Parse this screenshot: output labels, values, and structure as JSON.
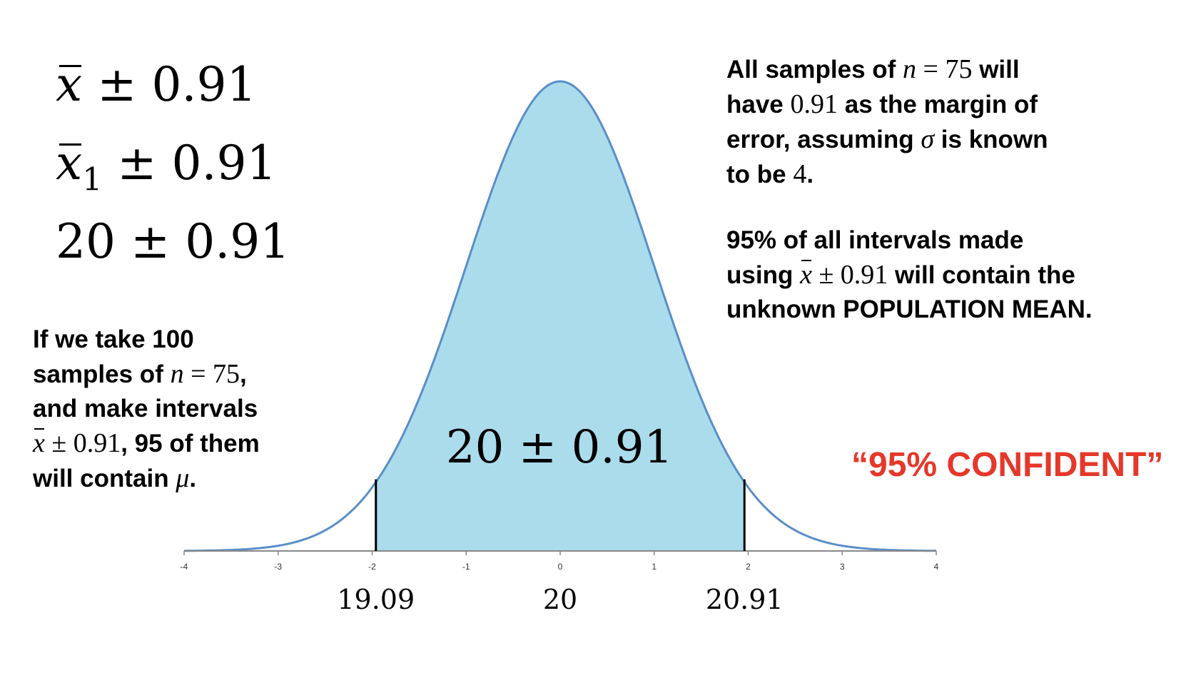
{
  "formulas": {
    "f1": {
      "var": "x",
      "sub": "",
      "rest": " ± 0.91"
    },
    "f2": {
      "var": "x",
      "sub": "1",
      "rest": " ± 0.91"
    },
    "f3": {
      "text": "20 ± 0.91"
    }
  },
  "left_paragraph": {
    "l1": "If we take 100",
    "l2a": "samples of ",
    "l2n": "n",
    "l2b": " = 75",
    "l2c": ",",
    "l3": "and make intervals",
    "l4x": "x",
    "l4m": " ± 0.91",
    "l4b": ", 95 of them",
    "l5a": "will contain ",
    "l5mu": "μ",
    "l5b": "."
  },
  "right_paragraph_1": {
    "l1a": "All samples of ",
    "l1n": "n",
    "l1m": " = 75",
    "l1b": " will",
    "l2a": "have ",
    "l2m": "0.91",
    "l2b": " as the margin of",
    "l3a": "error, assuming ",
    "l3s": "σ",
    "l3b": " is known",
    "l4a": "to be ",
    "l4m": "4",
    "l4b": "."
  },
  "right_paragraph_2": {
    "l1": "95% of all intervals made",
    "l2a": "using ",
    "l2x": "x",
    "l2m": " ± 0.91",
    "l2b": " will contain the",
    "l3": "unknown POPULATION MEAN."
  },
  "confident_label": "“95% CONFIDENT”",
  "colors": {
    "fill": "#aadcec",
    "curve": "#5a8ec8",
    "accent": "#e5382a"
  },
  "chart_data": {
    "type": "area",
    "distribution": "standard normal",
    "xlim": [
      -4,
      4
    ],
    "x_ticks": [
      -4,
      -3,
      -2,
      -1,
      0,
      1,
      2,
      3,
      4
    ],
    "tick_labels": [
      "-4",
      "-3",
      "-2",
      "-1",
      "0",
      "1",
      "2",
      "3",
      "4"
    ],
    "shaded_interval": [
      -1.96,
      1.96
    ],
    "boundary_labels": [
      {
        "x": -1.96,
        "label": "19.09"
      },
      {
        "x": 0,
        "label": "20"
      },
      {
        "x": 1.96,
        "label": "20.91"
      }
    ],
    "annotation": "20 ± 0.91"
  }
}
